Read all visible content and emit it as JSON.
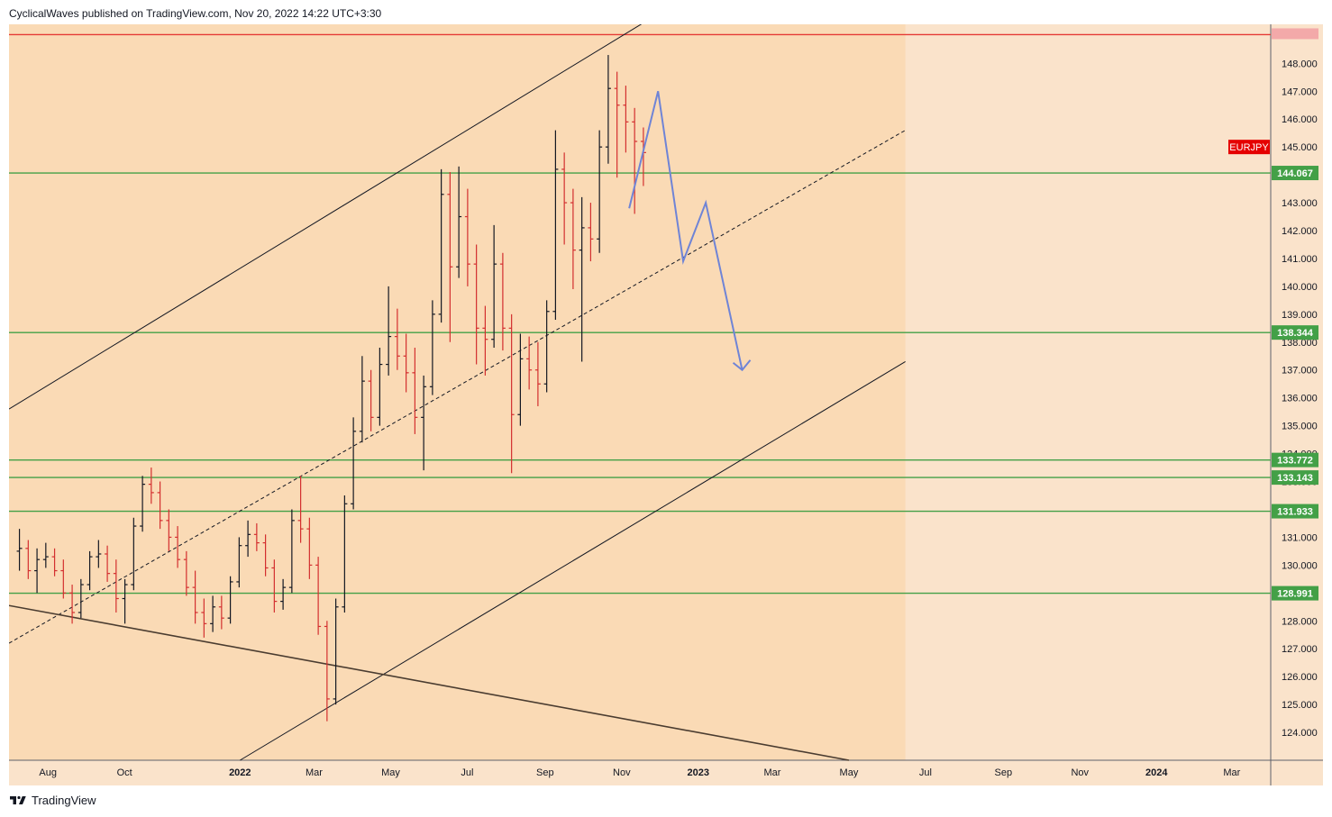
{
  "header": {
    "attribution": "CyclicalWaves published on TradingView.com, Nov 20, 2022 14:22 UTC+3:30"
  },
  "footer": {
    "brand": "TradingView"
  },
  "chart_data": {
    "type": "candlestick",
    "symbol": "EURJPY",
    "currency": "JPY",
    "y_axis": {
      "range": [
        123.0,
        149.4
      ],
      "ticks": [
        "124.000",
        "125.000",
        "126.000",
        "127.000",
        "128.000",
        "129.000",
        "130.000",
        "131.000",
        "132.000",
        "133.000",
        "134.000",
        "135.000",
        "136.000",
        "137.000",
        "138.000",
        "139.000",
        "140.000",
        "141.000",
        "142.000",
        "143.000",
        "144.000",
        "145.000",
        "146.000",
        "147.000",
        "148.000"
      ],
      "scale": "linear"
    },
    "x_axis": {
      "ticks": [
        {
          "label": "Aug",
          "date": "2021-08-01",
          "bold": false
        },
        {
          "label": "Oct",
          "date": "2021-10-01",
          "bold": false
        },
        {
          "label": "2022",
          "date": "2022-01-01",
          "bold": true
        },
        {
          "label": "Mar",
          "date": "2022-03-01",
          "bold": false
        },
        {
          "label": "May",
          "date": "2022-05-01",
          "bold": false
        },
        {
          "label": "Jul",
          "date": "2022-07-01",
          "bold": false
        },
        {
          "label": "Sep",
          "date": "2022-09-01",
          "bold": false
        },
        {
          "label": "Nov",
          "date": "2022-11-01",
          "bold": false
        },
        {
          "label": "2023",
          "date": "2023-01-01",
          "bold": true
        },
        {
          "label": "Mar",
          "date": "2023-03-01",
          "bold": false
        },
        {
          "label": "May",
          "date": "2023-05-01",
          "bold": false
        },
        {
          "label": "Jul",
          "date": "2023-07-01",
          "bold": false
        },
        {
          "label": "Sep",
          "date": "2023-09-01",
          "bold": false
        },
        {
          "label": "Nov",
          "date": "2023-11-01",
          "bold": false
        },
        {
          "label": "2024",
          "date": "2024-01-01",
          "bold": true
        },
        {
          "label": "Mar",
          "date": "2024-03-01",
          "bold": false
        }
      ]
    },
    "last_price_label": "EURJPY",
    "horizontal_levels": [
      {
        "value": 149.03,
        "label": "",
        "color": "#e53935"
      },
      {
        "value": 144.067,
        "label": "144.067",
        "color": "#43a047"
      },
      {
        "value": 138.344,
        "label": "138.344",
        "color": "#43a047"
      },
      {
        "value": 133.772,
        "label": "133.772",
        "color": "#43a047"
      },
      {
        "value": 133.143,
        "label": "133.143",
        "color": "#43a047"
      },
      {
        "value": 131.933,
        "label": "131.933",
        "color": "#43a047"
      },
      {
        "value": 128.991,
        "label": "128.991",
        "color": "#43a047"
      }
    ],
    "channel": {
      "upper": [
        [
          "2021-07-01",
          135.6
        ],
        [
          "2022-12-01",
          149.8
        ]
      ],
      "middle": [
        [
          "2021-07-01",
          127.2
        ],
        [
          "2023-06-15",
          145.6
        ]
      ],
      "lower": [
        [
          "2022-01-01",
          123.0
        ],
        [
          "2023-06-15",
          137.3
        ]
      ]
    },
    "descending_line": [
      [
        "2021-07-01",
        128.55
      ],
      [
        "2023-05-01",
        123.0
      ]
    ],
    "projection_path": [
      [
        "2022-11-07",
        142.8
      ],
      [
        "2022-11-30",
        147.0
      ],
      [
        "2022-12-20",
        140.9
      ],
      [
        "2023-01-07",
        143.0
      ],
      [
        "2023-02-05",
        137.0
      ]
    ],
    "ohlc_weekly": [
      [
        "2021-07-05",
        130.5,
        131.3,
        129.8,
        130.6
      ],
      [
        "2021-07-12",
        130.6,
        130.9,
        129.5,
        129.8
      ],
      [
        "2021-07-19",
        129.8,
        130.6,
        129.0,
        130.2
      ],
      [
        "2021-07-26",
        130.2,
        130.8,
        129.9,
        130.3
      ],
      [
        "2021-08-02",
        130.3,
        130.6,
        129.6,
        129.8
      ],
      [
        "2021-08-09",
        129.8,
        130.2,
        128.8,
        129.0
      ],
      [
        "2021-08-16",
        129.0,
        129.3,
        127.9,
        128.3
      ],
      [
        "2021-08-23",
        128.3,
        129.5,
        128.1,
        129.3
      ],
      [
        "2021-08-30",
        129.3,
        130.5,
        129.1,
        130.3
      ],
      [
        "2021-09-06",
        130.3,
        130.9,
        129.9,
        130.4
      ],
      [
        "2021-09-13",
        130.4,
        130.7,
        129.4,
        129.7
      ],
      [
        "2021-09-20",
        129.7,
        130.2,
        128.3,
        128.8
      ],
      [
        "2021-09-27",
        128.8,
        129.5,
        127.9,
        129.3
      ],
      [
        "2021-10-04",
        129.3,
        131.7,
        129.1,
        131.4
      ],
      [
        "2021-10-11",
        131.4,
        133.2,
        131.2,
        132.9
      ],
      [
        "2021-10-18",
        132.9,
        133.5,
        132.2,
        132.6
      ],
      [
        "2021-10-25",
        132.6,
        133.0,
        131.3,
        131.6
      ],
      [
        "2021-11-01",
        131.6,
        132.0,
        130.5,
        131.0
      ],
      [
        "2021-11-08",
        131.0,
        131.4,
        129.9,
        130.2
      ],
      [
        "2021-11-15",
        130.2,
        130.5,
        128.9,
        129.2
      ],
      [
        "2021-11-22",
        129.2,
        129.8,
        127.9,
        128.3
      ],
      [
        "2021-11-29",
        128.3,
        128.8,
        127.4,
        127.9
      ],
      [
        "2021-12-06",
        127.9,
        128.9,
        127.6,
        128.5
      ],
      [
        "2021-12-13",
        128.5,
        128.9,
        127.7,
        128.1
      ],
      [
        "2021-12-20",
        128.1,
        129.6,
        127.9,
        129.4
      ],
      [
        "2021-12-27",
        129.4,
        131.0,
        129.2,
        130.7
      ],
      [
        "2022-01-03",
        130.7,
        131.6,
        130.3,
        131.1
      ],
      [
        "2022-01-10",
        131.1,
        131.5,
        130.5,
        130.8
      ],
      [
        "2022-01-17",
        130.8,
        131.1,
        129.6,
        129.9
      ],
      [
        "2022-01-24",
        129.9,
        130.2,
        128.3,
        128.7
      ],
      [
        "2022-01-31",
        128.7,
        129.5,
        128.4,
        129.2
      ],
      [
        "2022-02-07",
        129.2,
        132.0,
        129.0,
        131.6
      ],
      [
        "2022-02-14",
        131.6,
        133.2,
        130.8,
        131.3
      ],
      [
        "2022-02-21",
        131.3,
        131.7,
        129.5,
        130.0
      ],
      [
        "2022-02-28",
        130.0,
        130.3,
        127.5,
        127.8
      ],
      [
        "2022-03-07",
        127.8,
        128.0,
        124.4,
        125.2
      ],
      [
        "2022-03-14",
        125.2,
        128.8,
        125.0,
        128.5
      ],
      [
        "2022-03-21",
        128.5,
        132.5,
        128.3,
        132.2
      ],
      [
        "2022-03-28",
        132.2,
        135.3,
        132.0,
        134.8
      ],
      [
        "2022-04-04",
        134.8,
        137.5,
        134.4,
        136.6
      ],
      [
        "2022-04-11",
        136.6,
        137.0,
        134.8,
        135.3
      ],
      [
        "2022-04-18",
        135.3,
        137.8,
        135.0,
        137.2
      ],
      [
        "2022-04-25",
        137.2,
        140.0,
        136.8,
        138.2
      ],
      [
        "2022-05-02",
        138.2,
        139.2,
        137.0,
        137.5
      ],
      [
        "2022-05-09",
        137.5,
        138.3,
        136.2,
        136.9
      ],
      [
        "2022-05-16",
        136.9,
        137.8,
        134.7,
        135.3
      ],
      [
        "2022-05-23",
        135.3,
        136.8,
        133.4,
        136.4
      ],
      [
        "2022-05-30",
        136.4,
        139.5,
        136.1,
        139.0
      ],
      [
        "2022-06-06",
        139.0,
        144.2,
        138.7,
        143.3
      ],
      [
        "2022-06-13",
        143.3,
        144.1,
        138.0,
        140.7
      ],
      [
        "2022-06-20",
        140.7,
        144.3,
        140.3,
        142.5
      ],
      [
        "2022-06-27",
        142.5,
        143.5,
        140.0,
        140.8
      ],
      [
        "2022-07-04",
        140.8,
        141.5,
        137.2,
        138.5
      ],
      [
        "2022-07-11",
        138.5,
        139.3,
        136.8,
        138.1
      ],
      [
        "2022-07-18",
        138.1,
        142.2,
        137.8,
        140.8
      ],
      [
        "2022-07-25",
        140.8,
        141.2,
        137.7,
        138.5
      ],
      [
        "2022-08-01",
        138.5,
        139.0,
        133.3,
        135.4
      ],
      [
        "2022-08-08",
        135.4,
        138.3,
        135.0,
        137.4
      ],
      [
        "2022-08-15",
        137.4,
        138.2,
        136.3,
        137.0
      ],
      [
        "2022-08-22",
        137.0,
        138.0,
        135.7,
        136.5
      ],
      [
        "2022-08-29",
        136.5,
        139.5,
        136.2,
        139.1
      ],
      [
        "2022-09-05",
        139.1,
        145.6,
        138.8,
        144.2
      ],
      [
        "2022-09-12",
        144.2,
        144.8,
        141.5,
        143.0
      ],
      [
        "2022-09-19",
        143.0,
        143.5,
        139.9,
        141.3
      ],
      [
        "2022-09-26",
        141.3,
        143.2,
        137.3,
        142.1
      ],
      [
        "2022-10-03",
        142.1,
        143.0,
        140.9,
        141.7
      ],
      [
        "2022-10-10",
        141.7,
        145.6,
        141.2,
        145.0
      ],
      [
        "2022-10-17",
        145.0,
        148.3,
        144.4,
        147.1
      ],
      [
        "2022-10-24",
        147.1,
        147.7,
        143.9,
        146.5
      ],
      [
        "2022-10-31",
        146.5,
        147.2,
        144.8,
        145.9
      ],
      [
        "2022-11-07",
        145.9,
        146.4,
        142.6,
        145.2
      ],
      [
        "2022-11-14",
        145.2,
        145.7,
        143.6,
        144.8
      ]
    ]
  }
}
